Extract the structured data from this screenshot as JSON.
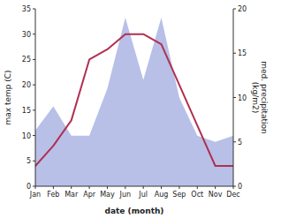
{
  "chart_data": {
    "type": "line",
    "categories": [
      "Jan",
      "Feb",
      "Mar",
      "Apr",
      "May",
      "Jun",
      "Jul",
      "Aug",
      "Sep",
      "Oct",
      "Nov",
      "Dec"
    ],
    "series": [
      {
        "type": "area",
        "axis": "y2",
        "color": "#b8c0e8",
        "values": [
          6.3,
          9,
          5.7,
          5.7,
          11,
          19,
          12,
          19,
          10,
          5.7,
          5,
          5.7
        ]
      },
      {
        "type": "line",
        "color": "#b03050",
        "values": [
          4,
          8,
          13,
          25,
          27,
          30,
          30,
          28,
          20,
          12,
          4,
          4
        ]
      }
    ],
    "xlabel": "date (month)",
    "ylabel": "max temp (C)",
    "y2label": "med. precipitation\n(kg/m2)",
    "ylim": [
      0,
      35
    ],
    "yticks": [
      0,
      5,
      10,
      15,
      20,
      25,
      30,
      35
    ],
    "y2lim": [
      0,
      20
    ],
    "y2ticks": [
      0,
      5,
      10,
      15,
      20
    ],
    "grid": false
  }
}
